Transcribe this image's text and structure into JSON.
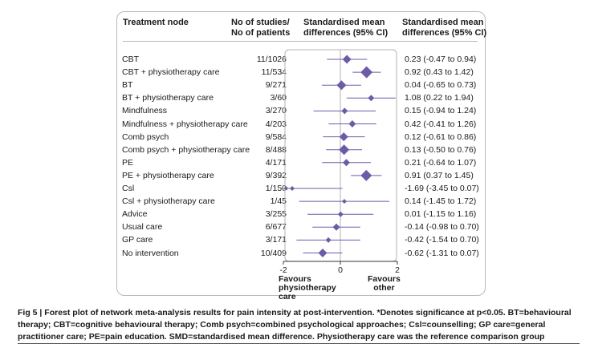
{
  "headers": {
    "node": "Treatment node",
    "studies_line1": "No of studies/",
    "studies_line2": "No of patients",
    "smd_line1": "Standardised mean",
    "smd_line2": "differences (95% CI)",
    "smd2_line1": "Standardised mean",
    "smd2_line2": "differences (95% CI)"
  },
  "chart_data": {
    "type": "forest",
    "title": "",
    "xlabel": "",
    "xlim": [
      -2,
      2
    ],
    "xticks": [
      "-2",
      "0",
      "2"
    ],
    "favours_left": [
      "Favours",
      "physiotherapy",
      "care"
    ],
    "favours_right": [
      "Favours",
      "other"
    ],
    "rows": [
      {
        "label": "CBT",
        "studies": "11/1026",
        "est": 0.23,
        "lo": -0.47,
        "hi": 0.94,
        "ci_text": "0.23 (-0.47 to 0.94)",
        "size": 8
      },
      {
        "label": "CBT + physiotherapy care",
        "studies": "11/534",
        "est": 0.92,
        "lo": 0.43,
        "hi": 1.42,
        "ci_text": "0.92 (0.43 to 1.42)",
        "size": 12
      },
      {
        "label": "BT",
        "studies": "9/271",
        "est": 0.04,
        "lo": -0.65,
        "hi": 0.73,
        "ci_text": "0.04 (-0.65 to 0.73)",
        "size": 9
      },
      {
        "label": "BT + physiotherapy care",
        "studies": "3/60",
        "est": 1.08,
        "lo": 0.22,
        "hi": 1.94,
        "ci_text": "1.08 (0.22 to 1.94)",
        "size": 5
      },
      {
        "label": "Mindfulness",
        "studies": "3/270",
        "est": 0.15,
        "lo": -0.94,
        "hi": 1.24,
        "ci_text": "0.15 (-0.94 to 1.24)",
        "size": 5
      },
      {
        "label": "Mindfulness + physiotherapy care",
        "studies": "4/203",
        "est": 0.42,
        "lo": -0.41,
        "hi": 1.26,
        "ci_text": "0.42 (-0.41 to 1.26)",
        "size": 6
      },
      {
        "label": "Comb psych",
        "studies": "9/584",
        "est": 0.12,
        "lo": -0.61,
        "hi": 0.86,
        "ci_text": "0.12 (-0.61 to 0.86)",
        "size": 8
      },
      {
        "label": "Comb psych + physiotherapy care",
        "studies": "8/488",
        "est": 0.13,
        "lo": -0.5,
        "hi": 0.76,
        "ci_text": "0.13 (-0.50 to 0.76)",
        "size": 10
      },
      {
        "label": "PE",
        "studies": "4/171",
        "est": 0.21,
        "lo": -0.64,
        "hi": 1.07,
        "ci_text": "0.21 (-0.64 to 1.07)",
        "size": 6
      },
      {
        "label": "PE + physiotherapy care",
        "studies": "9/392",
        "est": 0.91,
        "lo": 0.37,
        "hi": 1.45,
        "ci_text": "0.91 (0.37 to 1.45)",
        "size": 11
      },
      {
        "label": "Csl",
        "studies": "1/150",
        "est": -1.69,
        "lo": -3.45,
        "hi": 0.07,
        "ci_text": "-1.69 (-3.45 to 0.07)",
        "size": 3
      },
      {
        "label": "Csl + physiotherapy care",
        "studies": "1/45",
        "est": 0.14,
        "lo": -1.45,
        "hi": 1.72,
        "ci_text": "0.14 (-1.45 to 1.72)",
        "size": 3
      },
      {
        "label": "Advice",
        "studies": "3/255",
        "est": 0.01,
        "lo": -1.15,
        "hi": 1.16,
        "ci_text": "0.01 (-1.15 to 1.16)",
        "size": 4
      },
      {
        "label": "Usual care",
        "studies": "6/677",
        "est": -0.14,
        "lo": -0.98,
        "hi": 0.7,
        "ci_text": "-0.14 (-0.98 to 0.70)",
        "size": 6
      },
      {
        "label": "GP care",
        "studies": "3/171",
        "est": -0.42,
        "lo": -1.54,
        "hi": 0.7,
        "ci_text": "-0.42 (-1.54 to 0.70)",
        "size": 4
      },
      {
        "label": "No intervention",
        "studies": "10/409",
        "est": -0.62,
        "lo": -1.31,
        "hi": 0.07,
        "ci_text": "-0.62 (-1.31 to 0.07)",
        "size": 8
      }
    ],
    "marker_color": "#6e5ba8"
  },
  "caption": "Fig 5 | Forest plot of network meta-analysis results for pain intensity at post-intervention. *Denotes significance at p<0.05. BT=behavioural therapy; CBT=cognitive behavioural therapy; Comb psych=combined psychological approaches; Csl=counselling; GP care=general practitioner care; PE=pain education. SMD=standardised mean difference. Physiotherapy care was the reference comparison group"
}
